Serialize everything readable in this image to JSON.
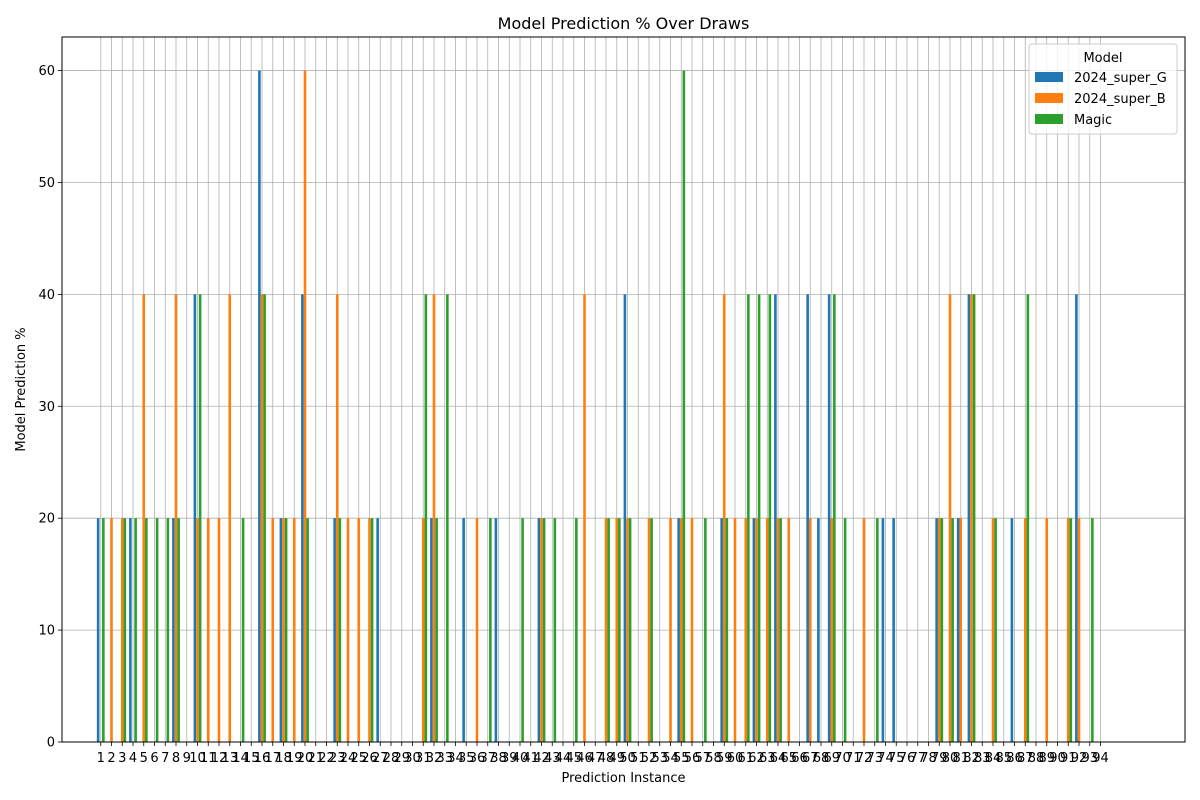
{
  "chart_data": {
    "type": "bar",
    "title": "Model Prediction % Over Draws",
    "xlabel": "Prediction Instance",
    "ylabel": "Model Prediction %",
    "ylim": [
      0,
      63
    ],
    "yticks": [
      0,
      10,
      20,
      30,
      40,
      50,
      60
    ],
    "grid": true,
    "legend_title": "Model",
    "legend_position": "top-right",
    "categories": [
      "1",
      "2",
      "3",
      "4",
      "5",
      "6",
      "7",
      "8",
      "9",
      "10",
      "11",
      "12",
      "13",
      "14",
      "15",
      "16",
      "17",
      "18",
      "19",
      "20",
      "21",
      "22",
      "23",
      "24",
      "25",
      "26",
      "27",
      "28",
      "29",
      "30",
      "31",
      "32",
      "33",
      "34",
      "35",
      "36",
      "37",
      "38",
      "39",
      "40",
      "41",
      "42",
      "43",
      "44",
      "45",
      "46",
      "47",
      "48",
      "49",
      "50",
      "51",
      "52",
      "53",
      "54",
      "55",
      "56",
      "57",
      "58",
      "59",
      "60",
      "61",
      "62",
      "63",
      "64",
      "65",
      "66",
      "67",
      "68",
      "69",
      "70",
      "71",
      "72",
      "73",
      "74",
      "75",
      "76",
      "77",
      "78",
      "79",
      "80",
      "81",
      "82",
      "83",
      "84",
      "85",
      "86",
      "87",
      "88",
      "89",
      "90",
      "91",
      "92",
      "93",
      "94"
    ],
    "series": [
      {
        "name": "2024_super_G",
        "color": "#1f77b4",
        "values": [
          20,
          0,
          0,
          20,
          0,
          0,
          0,
          20,
          0,
          40,
          0,
          0,
          0,
          0,
          0,
          60,
          0,
          20,
          0,
          40,
          0,
          0,
          20,
          0,
          0,
          0,
          20,
          0,
          0,
          0,
          0,
          20,
          0,
          0,
          20,
          0,
          0,
          20,
          0,
          0,
          0,
          20,
          0,
          0,
          0,
          0,
          0,
          0,
          0,
          40,
          0,
          0,
          0,
          0,
          20,
          0,
          0,
          0,
          20,
          0,
          0,
          20,
          0,
          40,
          0,
          0,
          40,
          20,
          40,
          0,
          0,
          0,
          0,
          20,
          20,
          0,
          0,
          0,
          20,
          0,
          20,
          40,
          0,
          0,
          0,
          20,
          0,
          0,
          0,
          0,
          0,
          40,
          0,
          0
        ]
      },
      {
        "name": "2024_super_B",
        "color": "#ff7f0e",
        "values": [
          0,
          20,
          20,
          0,
          40,
          0,
          0,
          40,
          0,
          20,
          20,
          20,
          40,
          0,
          0,
          40,
          20,
          20,
          20,
          60,
          0,
          0,
          40,
          20,
          20,
          20,
          0,
          0,
          0,
          0,
          20,
          40,
          0,
          0,
          0,
          20,
          0,
          0,
          0,
          0,
          0,
          20,
          0,
          0,
          0,
          40,
          0,
          20,
          20,
          20,
          0,
          20,
          0,
          20,
          20,
          20,
          0,
          0,
          40,
          20,
          20,
          20,
          20,
          20,
          20,
          0,
          20,
          0,
          20,
          0,
          0,
          20,
          0,
          0,
          0,
          0,
          0,
          0,
          20,
          40,
          20,
          40,
          0,
          20,
          0,
          0,
          20,
          0,
          20,
          0,
          20,
          20,
          0,
          0
        ]
      },
      {
        "name": "Magic",
        "color": "#2ca02c",
        "values": [
          20,
          0,
          20,
          20,
          20,
          20,
          20,
          20,
          0,
          40,
          0,
          0,
          0,
          20,
          0,
          40,
          0,
          20,
          0,
          20,
          0,
          0,
          20,
          0,
          0,
          20,
          0,
          0,
          0,
          0,
          40,
          20,
          40,
          0,
          0,
          0,
          20,
          0,
          0,
          20,
          0,
          20,
          20,
          0,
          20,
          0,
          0,
          20,
          20,
          20,
          0,
          20,
          0,
          0,
          60,
          0,
          20,
          0,
          20,
          0,
          40,
          40,
          40,
          20,
          0,
          0,
          0,
          0,
          40,
          20,
          0,
          0,
          20,
          0,
          0,
          0,
          0,
          0,
          20,
          20,
          0,
          40,
          0,
          20,
          0,
          0,
          40,
          0,
          0,
          0,
          20,
          0,
          20,
          0
        ]
      }
    ]
  }
}
